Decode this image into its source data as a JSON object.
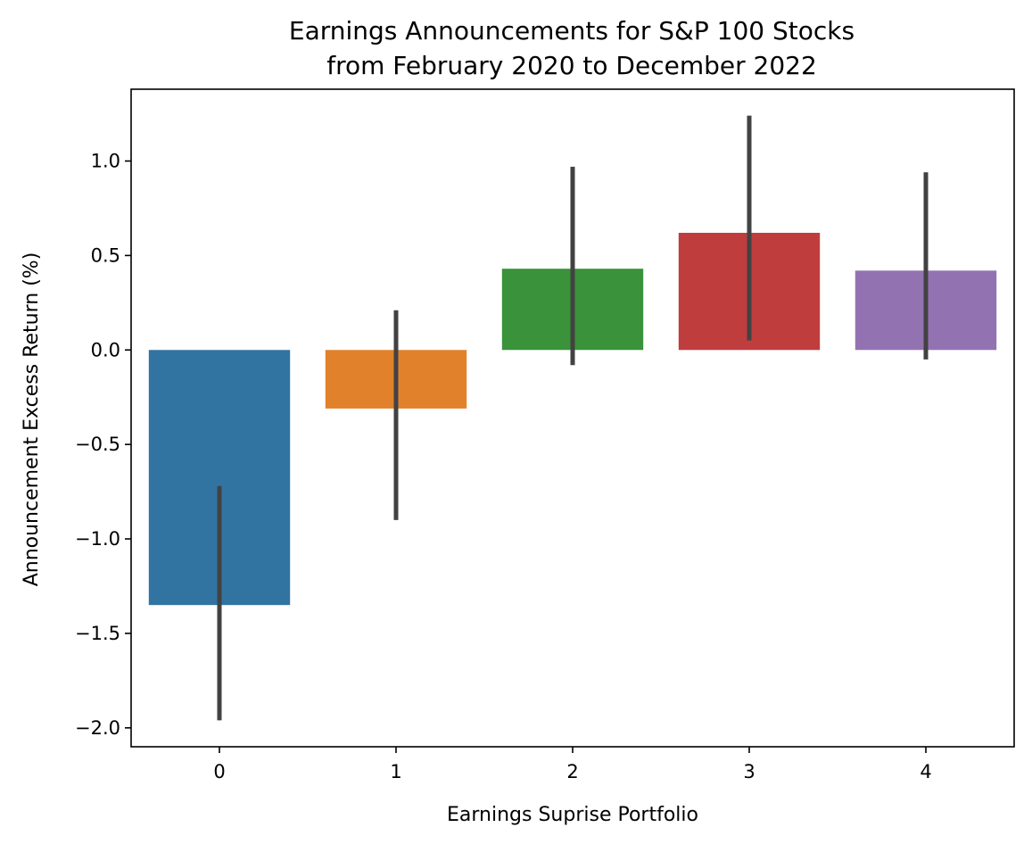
{
  "chart_data": {
    "type": "bar",
    "title_lines": [
      "Earnings Announcements for S&P 100 Stocks",
      "from February 2020 to December 2022"
    ],
    "xlabel": "Earnings Suprise Portfolio",
    "ylabel": "Announcement Excess Return (%)",
    "categories": [
      "0",
      "1",
      "2",
      "3",
      "4"
    ],
    "values": [
      -1.35,
      -0.31,
      0.43,
      0.62,
      0.42
    ],
    "error_low": [
      -1.96,
      -0.9,
      -0.08,
      0.05,
      -0.05
    ],
    "error_high": [
      -0.72,
      0.21,
      0.97,
      1.24,
      0.94
    ],
    "colors": [
      "#3274a1",
      "#e1812c",
      "#3a923a",
      "#c03d3e",
      "#9372b2"
    ],
    "ylim": [
      -2.1,
      1.38
    ],
    "yticks": [
      1.0,
      0.5,
      0.0,
      -0.5,
      -1.0,
      -1.5,
      -2.0
    ],
    "ytick_labels": [
      "1.0",
      "0.5",
      "0.0",
      "−0.5",
      "−1.0",
      "−1.5",
      "−2.0"
    ],
    "grid": false,
    "legend": "none"
  }
}
